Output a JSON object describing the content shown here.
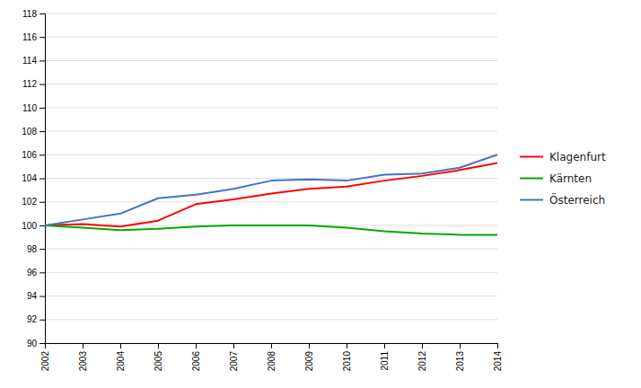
{
  "chart_data": {
    "type": "line",
    "x": [
      2002,
      2003,
      2004,
      2005,
      2006,
      2007,
      2008,
      2009,
      2010,
      2011,
      2012,
      2013,
      2014
    ],
    "series": [
      {
        "name": "Klagenfurt",
        "color": "#ff0000",
        "values": [
          100.0,
          100.1,
          99.9,
          100.4,
          101.8,
          102.2,
          102.7,
          103.1,
          103.3,
          103.8,
          104.2,
          104.7,
          105.3
        ]
      },
      {
        "name": "Kärnten",
        "color": "#00aa00",
        "values": [
          100.0,
          99.8,
          99.6,
          99.7,
          99.9,
          100.0,
          100.0,
          100.0,
          99.8,
          99.5,
          99.3,
          99.2,
          99.2
        ]
      },
      {
        "name": "Österreich",
        "color": "#4472c4",
        "values": [
          100.0,
          100.5,
          101.0,
          102.3,
          102.6,
          103.1,
          103.8,
          103.9,
          103.8,
          104.3,
          104.4,
          104.9,
          106.0
        ]
      }
    ],
    "xlim": [
      2002,
      2014
    ],
    "xticks": [
      2002,
      2003,
      2004,
      2005,
      2006,
      2007,
      2008,
      2009,
      2010,
      2011,
      2012,
      2013,
      2014
    ],
    "ylim": [
      90,
      118
    ],
    "yticks": [
      90,
      92,
      94,
      96,
      98,
      100,
      102,
      104,
      106,
      108,
      110,
      112,
      114,
      116,
      118
    ],
    "grid": true,
    "legend": "right"
  }
}
